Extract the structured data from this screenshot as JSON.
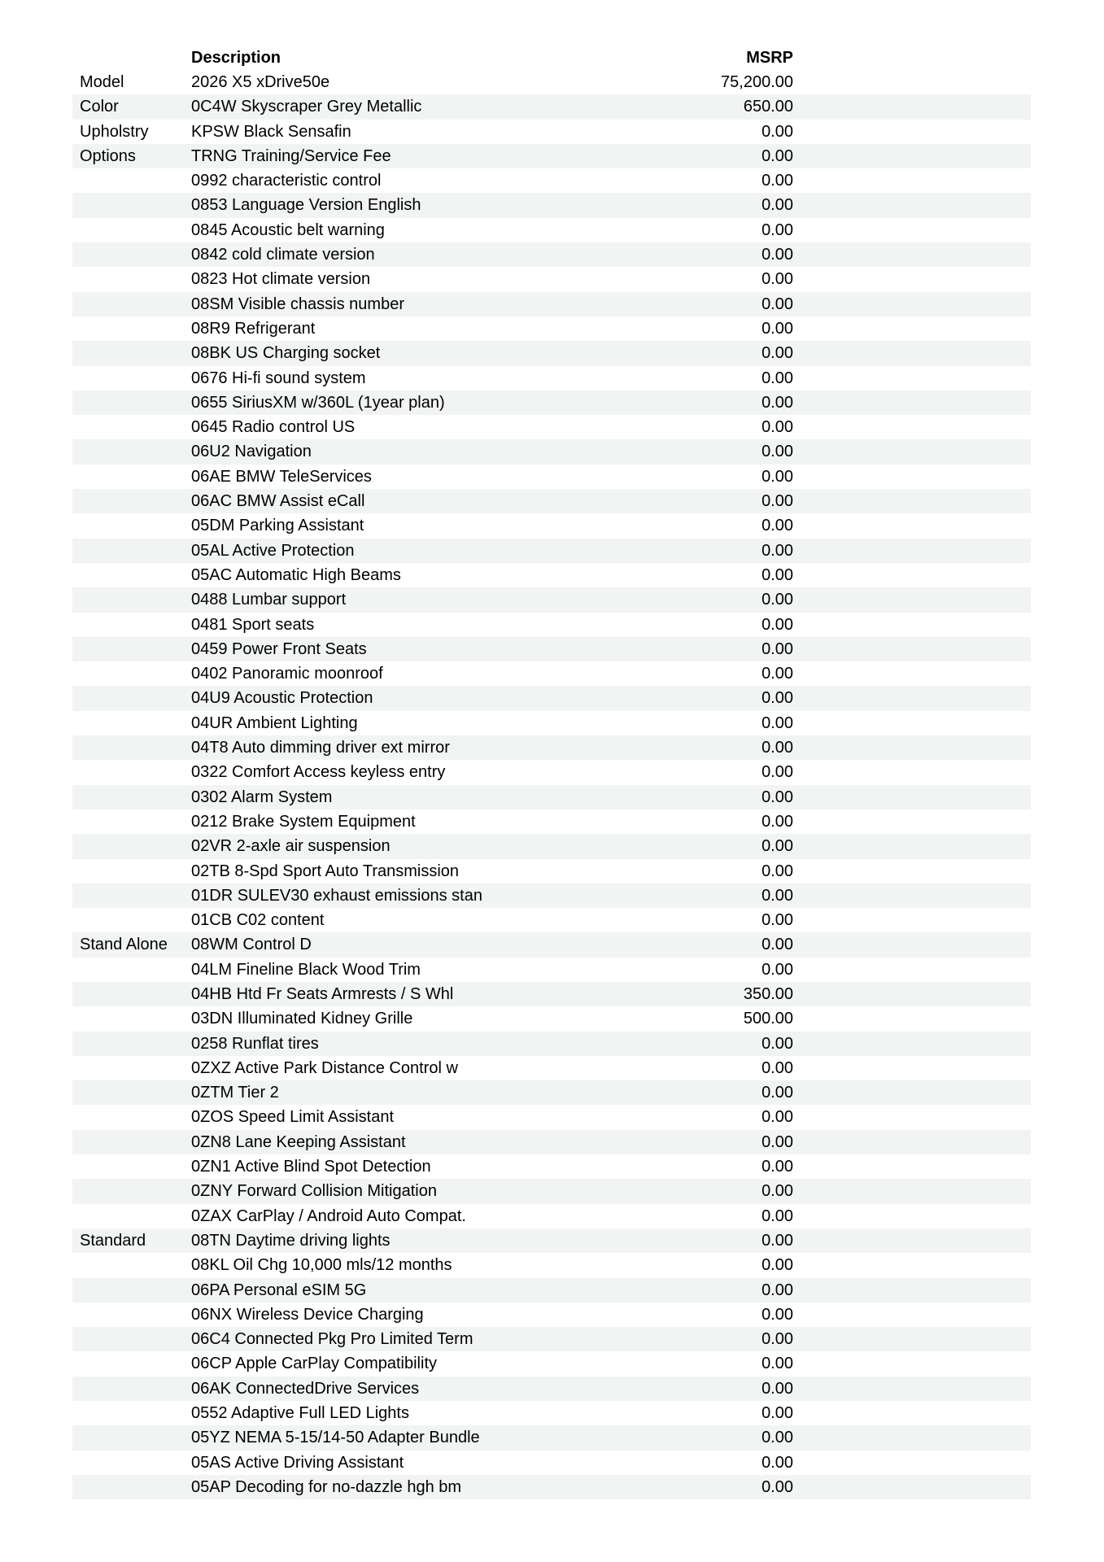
{
  "table": {
    "headers": {
      "description": "Description",
      "msrp": "MSRP"
    },
    "colors": {
      "stripe": "#f1f4f3",
      "text": "#000000",
      "background": "#ffffff"
    },
    "rows": [
      {
        "category": "Model",
        "description": "2026 X5 xDrive50e",
        "msrp": "75,200.00"
      },
      {
        "category": "Color",
        "description": "0C4W Skyscraper Grey Metallic",
        "msrp": "650.00"
      },
      {
        "category": "Upholstry",
        "description": "KPSW Black Sensafin",
        "msrp": "0.00"
      },
      {
        "category": "Options",
        "description": "TRNG Training/Service Fee",
        "msrp": "0.00"
      },
      {
        "category": "",
        "description": "0992 characteristic control",
        "msrp": "0.00"
      },
      {
        "category": "",
        "description": "0853 Language Version English",
        "msrp": "0.00"
      },
      {
        "category": "",
        "description": "0845 Acoustic belt warning",
        "msrp": "0.00"
      },
      {
        "category": "",
        "description": "0842 cold climate version",
        "msrp": "0.00"
      },
      {
        "category": "",
        "description": "0823 Hot climate version",
        "msrp": "0.00"
      },
      {
        "category": "",
        "description": "08SM Visible chassis number",
        "msrp": "0.00"
      },
      {
        "category": "",
        "description": "08R9 Refrigerant",
        "msrp": "0.00"
      },
      {
        "category": "",
        "description": "08BK US Charging socket",
        "msrp": "0.00"
      },
      {
        "category": "",
        "description": "0676 Hi-fi sound system",
        "msrp": "0.00"
      },
      {
        "category": "",
        "description": "0655 SiriusXM w/360L (1year plan)",
        "msrp": "0.00"
      },
      {
        "category": "",
        "description": "0645 Radio control US",
        "msrp": "0.00"
      },
      {
        "category": "",
        "description": "06U2 Navigation",
        "msrp": "0.00"
      },
      {
        "category": "",
        "description": "06AE BMW TeleServices",
        "msrp": "0.00"
      },
      {
        "category": "",
        "description": "06AC BMW Assist eCall",
        "msrp": "0.00"
      },
      {
        "category": "",
        "description": "05DM Parking Assistant",
        "msrp": "0.00"
      },
      {
        "category": "",
        "description": "05AL Active Protection",
        "msrp": "0.00"
      },
      {
        "category": "",
        "description": "05AC Automatic High Beams",
        "msrp": "0.00"
      },
      {
        "category": "",
        "description": "0488 Lumbar support",
        "msrp": "0.00"
      },
      {
        "category": "",
        "description": "0481 Sport seats",
        "msrp": "0.00"
      },
      {
        "category": "",
        "description": "0459 Power Front Seats",
        "msrp": "0.00"
      },
      {
        "category": "",
        "description": "0402 Panoramic moonroof",
        "msrp": "0.00"
      },
      {
        "category": "",
        "description": "04U9 Acoustic Protection",
        "msrp": "0.00"
      },
      {
        "category": "",
        "description": "04UR Ambient Lighting",
        "msrp": "0.00"
      },
      {
        "category": "",
        "description": "04T8 Auto dimming driver ext mirror",
        "msrp": "0.00"
      },
      {
        "category": "",
        "description": "0322 Comfort Access keyless entry",
        "msrp": "0.00"
      },
      {
        "category": "",
        "description": "0302 Alarm System",
        "msrp": "0.00"
      },
      {
        "category": "",
        "description": "0212 Brake System Equipment",
        "msrp": "0.00"
      },
      {
        "category": "",
        "description": "02VR 2-axle air suspension",
        "msrp": "0.00"
      },
      {
        "category": "",
        "description": "02TB 8-Spd Sport Auto Transmission",
        "msrp": "0.00"
      },
      {
        "category": "",
        "description": "01DR SULEV30 exhaust emissions stan",
        "msrp": "0.00"
      },
      {
        "category": "",
        "description": "01CB C02 content",
        "msrp": "0.00"
      },
      {
        "category": "Stand Alone",
        "description": "08WM Control D",
        "msrp": "0.00"
      },
      {
        "category": "",
        "description": "04LM Fineline Black Wood Trim",
        "msrp": "0.00"
      },
      {
        "category": "",
        "description": "04HB Htd Fr Seats Armrests / S Whl",
        "msrp": "350.00"
      },
      {
        "category": "",
        "description": "03DN Illuminated Kidney Grille",
        "msrp": "500.00"
      },
      {
        "category": "",
        "description": "0258 Runflat tires",
        "msrp": "0.00"
      },
      {
        "category": "",
        "description": "0ZXZ Active Park Distance Control w",
        "msrp": "0.00"
      },
      {
        "category": "",
        "description": "0ZTM Tier 2",
        "msrp": "0.00"
      },
      {
        "category": "",
        "description": "0ZOS Speed Limit Assistant",
        "msrp": "0.00"
      },
      {
        "category": "",
        "description": "0ZN8 Lane Keeping Assistant",
        "msrp": "0.00"
      },
      {
        "category": "",
        "description": "0ZN1 Active Blind Spot Detection",
        "msrp": "0.00"
      },
      {
        "category": "",
        "description": "0ZNY Forward Collision Mitigation",
        "msrp": "0.00"
      },
      {
        "category": "",
        "description": "0ZAX CarPlay / Android Auto Compat.",
        "msrp": "0.00"
      },
      {
        "category": "Standard",
        "description": "08TN Daytime driving lights",
        "msrp": "0.00"
      },
      {
        "category": "",
        "description": "08KL Oil Chg 10,000 mls/12 months",
        "msrp": "0.00"
      },
      {
        "category": "",
        "description": "06PA Personal eSIM 5G",
        "msrp": "0.00"
      },
      {
        "category": "",
        "description": "06NX Wireless Device Charging",
        "msrp": "0.00"
      },
      {
        "category": "",
        "description": "06C4 Connected Pkg Pro Limited Term",
        "msrp": "0.00"
      },
      {
        "category": "",
        "description": "06CP Apple CarPlay Compatibility",
        "msrp": "0.00"
      },
      {
        "category": "",
        "description": "06AK ConnectedDrive Services",
        "msrp": "0.00"
      },
      {
        "category": "",
        "description": "0552 Adaptive Full LED Lights",
        "msrp": "0.00"
      },
      {
        "category": "",
        "description": "05YZ NEMA 5-15/14-50 Adapter Bundle",
        "msrp": "0.00"
      },
      {
        "category": "",
        "description": "05AS Active Driving Assistant",
        "msrp": "0.00"
      },
      {
        "category": "",
        "description": "05AP Decoding for no-dazzle hgh bm",
        "msrp": "0.00"
      }
    ]
  }
}
